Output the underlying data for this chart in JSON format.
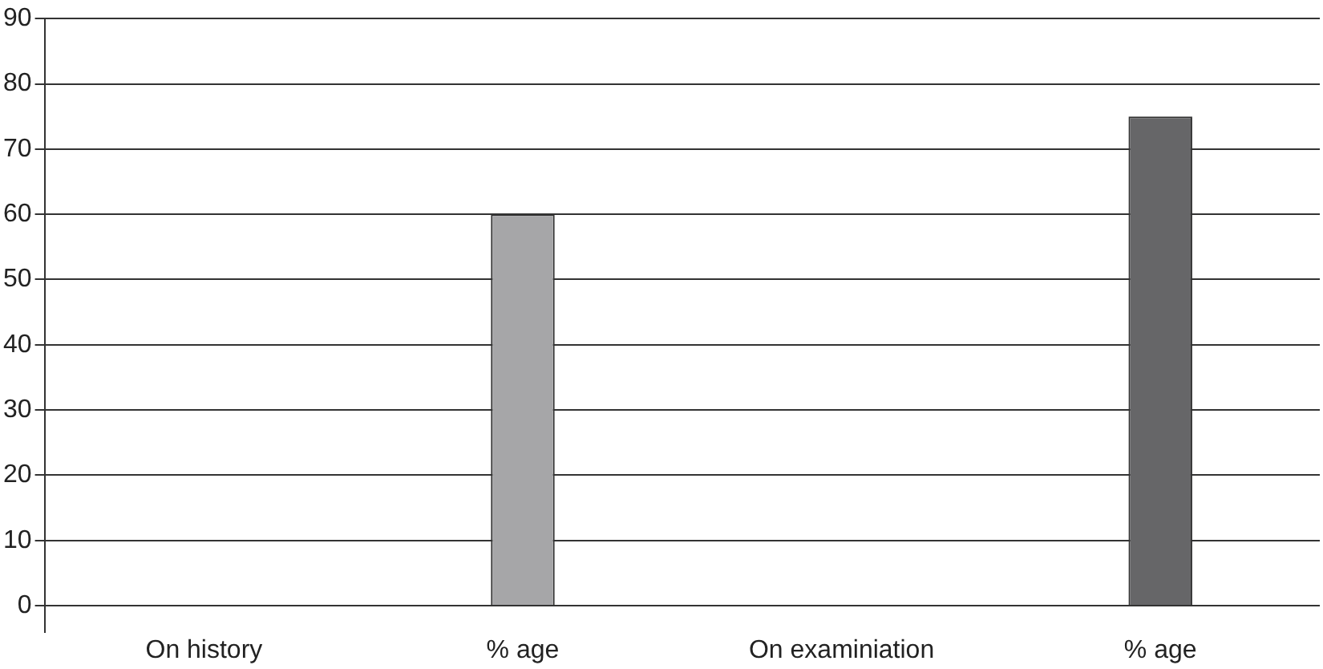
{
  "chart_data": {
    "type": "bar",
    "categories": [
      "On history",
      "% age",
      "On examiniation",
      "% age"
    ],
    "values": [
      null,
      60,
      null,
      75
    ],
    "colors": [
      "#a6a6a8",
      "#a6a6a8",
      "#666668",
      "#666668"
    ],
    "ylim": [
      -4,
      90
    ],
    "yticks": [
      0,
      10,
      20,
      30,
      40,
      50,
      60,
      70,
      80,
      90
    ],
    "grid": "y",
    "legend": false
  }
}
